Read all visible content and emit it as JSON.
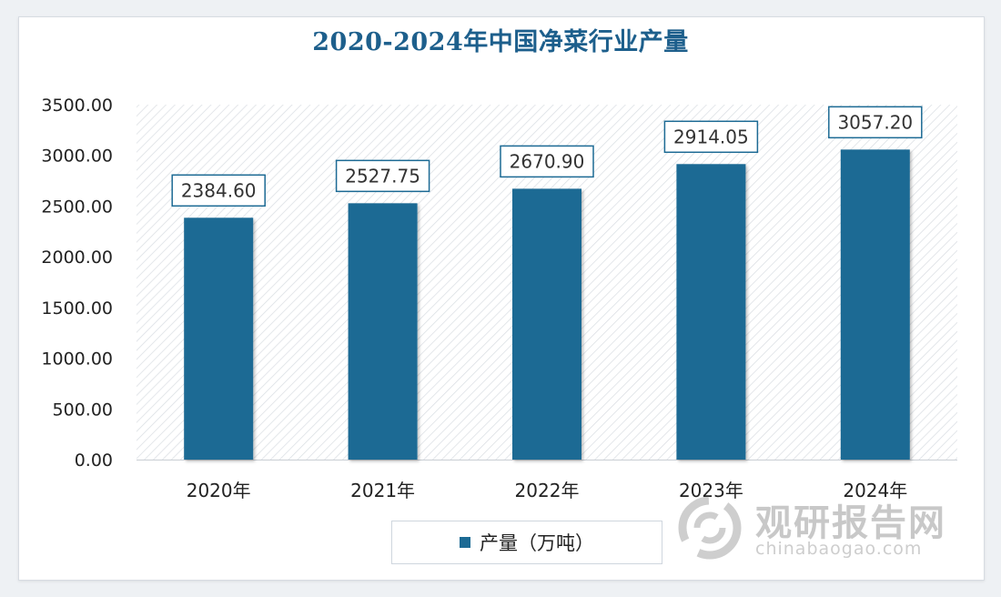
{
  "chart_data": {
    "type": "bar",
    "title": "2020-2024年中国净菜行业产量",
    "categories": [
      "2020年",
      "2021年",
      "2022年",
      "2023年",
      "2024年"
    ],
    "series": [
      {
        "name": "产量（万吨）",
        "values": [
          2384.6,
          2527.75,
          2670.9,
          2914.05,
          3057.2
        ]
      }
    ],
    "data_labels": [
      "2384.60",
      "2527.75",
      "2670.90",
      "2914.05",
      "3057.20"
    ],
    "yticks": [
      "0.00",
      "500.00",
      "1000.00",
      "1500.00",
      "2000.00",
      "2500.00",
      "3000.00",
      "3500.00"
    ],
    "ylim": [
      0,
      3500
    ],
    "xlabel": "",
    "ylabel": "",
    "grid": false,
    "legend": "bottom",
    "colors": {
      "bar": "#1c6a94",
      "title": "#1d5f8c",
      "hatch": "#d9dde2"
    }
  },
  "legend": {
    "label": "产量（万吨）"
  },
  "watermark": {
    "brand": "观研报告网",
    "url": "chinabaogao.com",
    "icon": "swirl-logo-icon"
  }
}
